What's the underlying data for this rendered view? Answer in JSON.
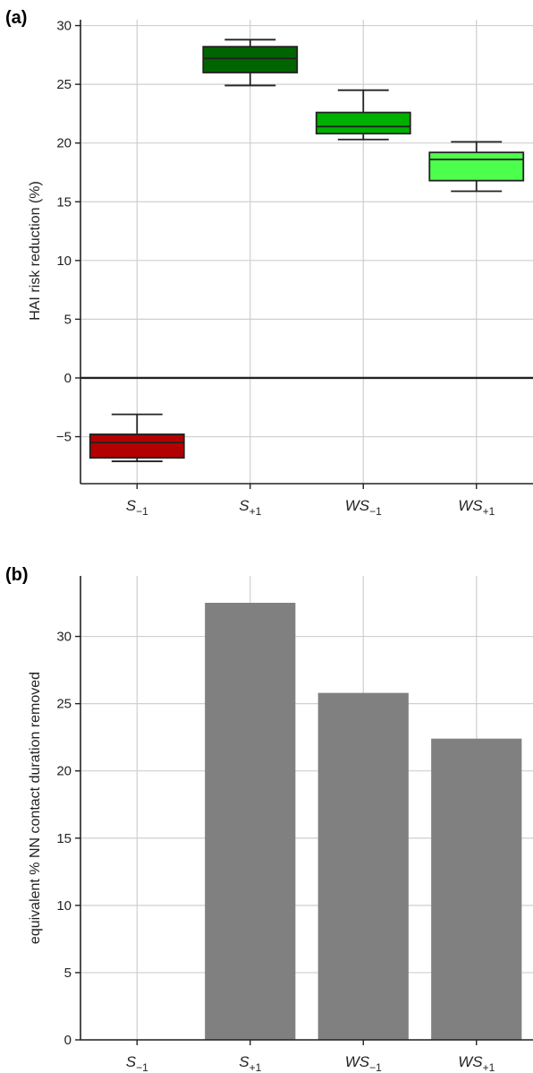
{
  "chart_data": [
    {
      "type": "box",
      "panel_label": "(a)",
      "title": "",
      "xlabel": "",
      "ylabel": "HAI risk reduction (%)",
      "categories": [
        "S",
        "S",
        "WS",
        "WS"
      ],
      "category_subscripts": [
        "−1",
        "+1",
        "−1",
        "+1"
      ],
      "ylim": [
        -9,
        30.5
      ],
      "yticks": [
        -5,
        0,
        5,
        10,
        15,
        20,
        25,
        30
      ],
      "grid": true,
      "zero_line": true,
      "boxes": [
        {
          "whislo": -7.1,
          "q1": -6.8,
          "med": -5.5,
          "q3": -4.8,
          "whishi": -3.1,
          "color": "#b30000"
        },
        {
          "whislo": 24.9,
          "q1": 26.0,
          "med": 27.2,
          "q3": 28.2,
          "whishi": 28.8,
          "color": "#006400"
        },
        {
          "whislo": 20.3,
          "q1": 20.8,
          "med": 21.4,
          "q3": 22.6,
          "whishi": 24.5,
          "color": "#00b000"
        },
        {
          "whislo": 15.9,
          "q1": 16.8,
          "med": 18.6,
          "q3": 19.2,
          "whishi": 20.1,
          "color": "#4dff4d"
        }
      ]
    },
    {
      "type": "bar",
      "panel_label": "(b)",
      "title": "",
      "xlabel": "",
      "ylabel": "equivalent % NN contact duration removed",
      "categories": [
        "S",
        "S",
        "WS",
        "WS"
      ],
      "category_subscripts": [
        "−1",
        "+1",
        "−1",
        "+1"
      ],
      "values": [
        0,
        32.5,
        25.8,
        22.4
      ],
      "ylim": [
        0,
        34.5
      ],
      "yticks": [
        0,
        5,
        10,
        15,
        20,
        25,
        30
      ],
      "grid": true,
      "bar_color": "#808080"
    }
  ]
}
